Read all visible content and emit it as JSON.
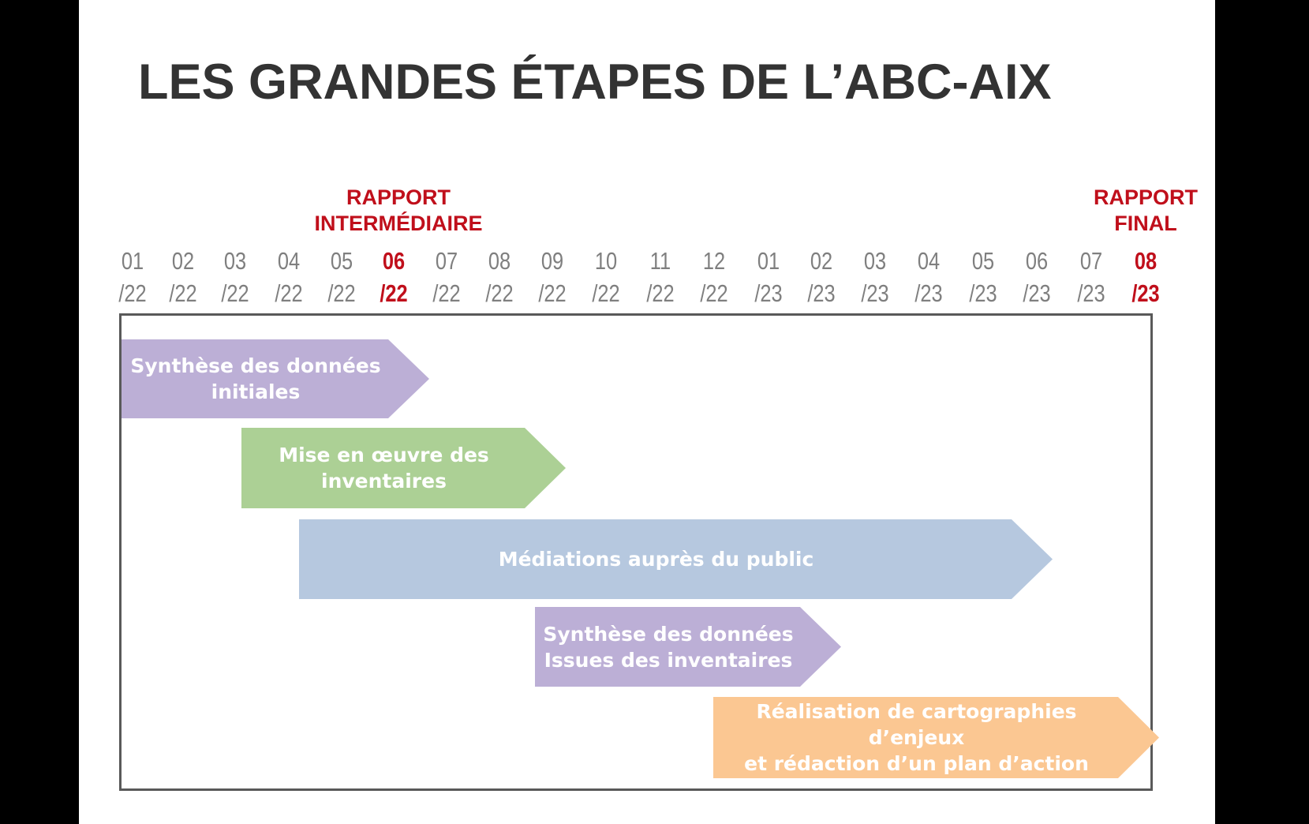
{
  "title": "LES GRANDES ÉTAPES DE L’ABC-AIX",
  "milestones": [
    {
      "line1": "RAPPORT",
      "line2": "INTERMÉDIAIRE"
    },
    {
      "line1": "RAPPORT",
      "line2": "FINAL"
    }
  ],
  "months": [
    {
      "m": "01",
      "y": "/22"
    },
    {
      "m": "02",
      "y": "/22"
    },
    {
      "m": "03",
      "y": "/22"
    },
    {
      "m": "04",
      "y": "/22"
    },
    {
      "m": "05",
      "y": "/22"
    },
    {
      "m": "06",
      "y": "/22"
    },
    {
      "m": "07",
      "y": "/22"
    },
    {
      "m": "08",
      "y": "/22"
    },
    {
      "m": "09",
      "y": "/22"
    },
    {
      "m": "10",
      "y": "/22"
    },
    {
      "m": "11",
      "y": "/22"
    },
    {
      "m": "12",
      "y": "/22"
    },
    {
      "m": "01",
      "y": "/23"
    },
    {
      "m": "02",
      "y": "/23"
    },
    {
      "m": "03",
      "y": "/23"
    },
    {
      "m": "04",
      "y": "/23"
    },
    {
      "m": "05",
      "y": "/23"
    },
    {
      "m": "06",
      "y": "/23"
    },
    {
      "m": "07",
      "y": "/23"
    },
    {
      "m": "08",
      "y": "/23"
    }
  ],
  "phases": [
    {
      "line1": "Synthèse des données",
      "line2": "initiales",
      "color": "#bcafd6"
    },
    {
      "line1": "Mise en œuvre des",
      "line2": "inventaires",
      "color": "#acd095"
    },
    {
      "line1": "Médiations auprès du public",
      "line2": "",
      "color": "#b6c8df"
    },
    {
      "line1": "Synthèse des données",
      "line2": "Issues des inventaires",
      "color": "#bcafd6"
    },
    {
      "line1": "Réalisation de cartographies d’enjeux",
      "line2": "et rédaction d’un plan d’action",
      "color": "#fbc792"
    }
  ],
  "colors": {
    "milestone": "#c00f1b",
    "month": "#7f7f7f",
    "title": "#333333"
  }
}
